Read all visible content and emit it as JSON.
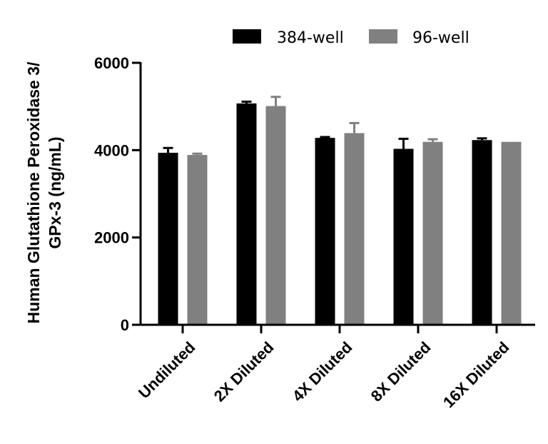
{
  "chart_data": {
    "type": "bar",
    "title": "",
    "xlabel": "",
    "ylabel": [
      "Human Glutathione Peroxidase 3/",
      "GPx-3  (ng/mL)"
    ],
    "categories": [
      "Undiluted",
      "2X Diluted",
      "4X Diluted",
      "8X Diluted",
      "16X Diluted"
    ],
    "series": [
      {
        "name": "384-well",
        "color": "#000000",
        "values": [
          3940,
          5070,
          4280,
          4030,
          4230
        ],
        "errors": [
          110,
          40,
          20,
          230,
          40
        ]
      },
      {
        "name": "96-well",
        "color": "#808080",
        "values": [
          3890,
          5010,
          4390,
          4190,
          4190
        ],
        "errors": [
          30,
          210,
          230,
          60,
          0
        ]
      }
    ],
    "ylim": [
      0,
      6000
    ],
    "yticks": [
      0,
      2000,
      4000,
      6000
    ],
    "ytick_labels": [
      "0",
      "2000",
      "4000",
      "6000"
    ],
    "grid": false,
    "legend_position": "top"
  }
}
